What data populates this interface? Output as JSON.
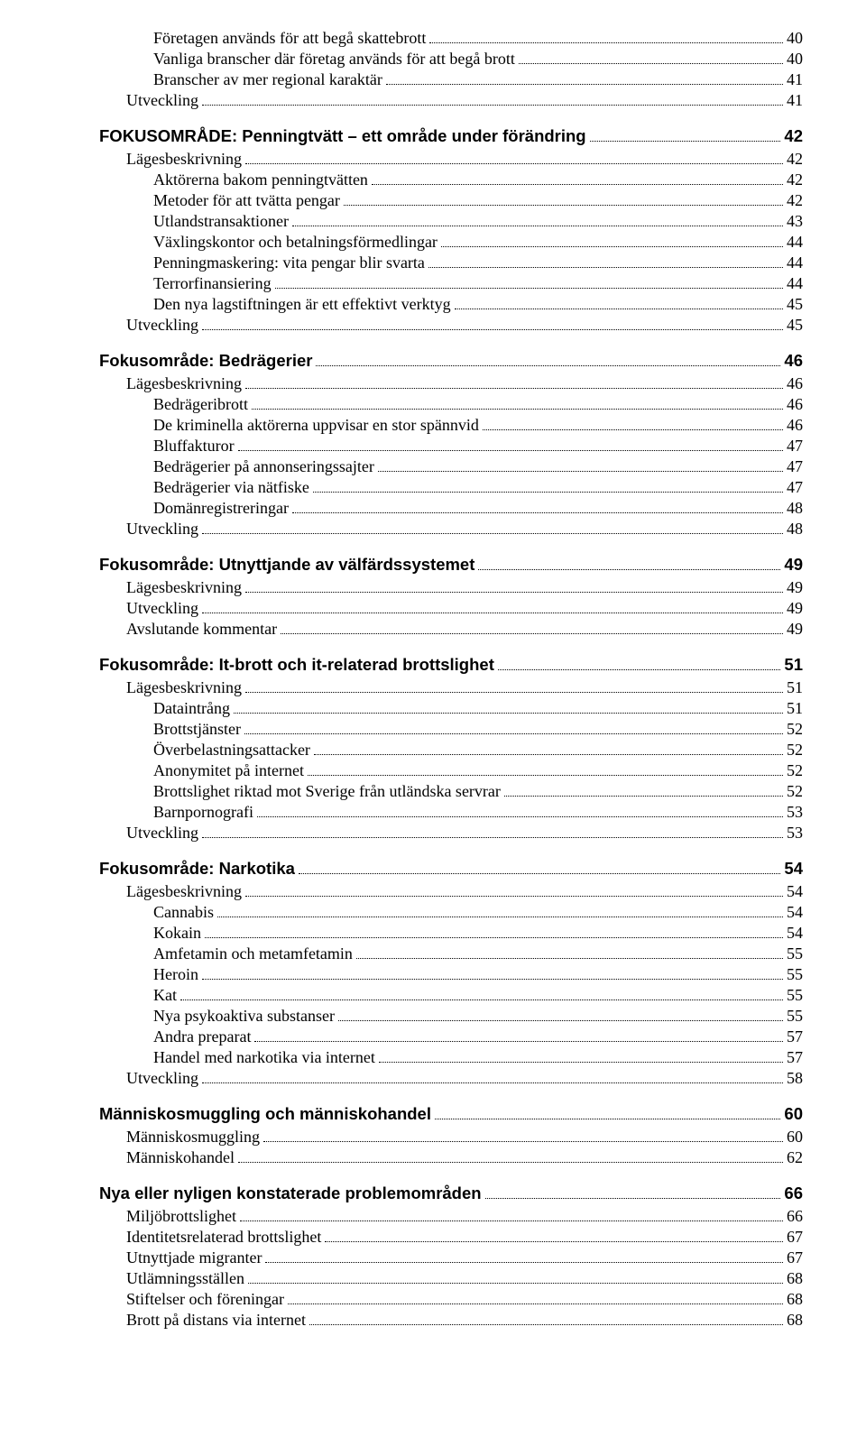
{
  "toc": [
    {
      "level": 3,
      "label": "Företagen används för att begå skattebrott",
      "page": "40"
    },
    {
      "level": 3,
      "label": "Vanliga branscher där företag används för att begå brott",
      "page": "40"
    },
    {
      "level": 3,
      "label": "Branscher av mer regional karaktär",
      "page": "41"
    },
    {
      "level": 2,
      "label": "Utveckling",
      "page": "41"
    },
    {
      "level": 1,
      "label": "FOKUSOMRÅDE: Penningtvätt – ett område under förändring",
      "page": "42"
    },
    {
      "level": 2,
      "label": "Lägesbeskrivning",
      "page": "42"
    },
    {
      "level": 3,
      "label": "Aktörerna bakom penningtvätten",
      "page": "42"
    },
    {
      "level": 3,
      "label": "Metoder för att tvätta pengar",
      "page": "42"
    },
    {
      "level": 3,
      "label": "Utlandstransaktioner",
      "page": "43"
    },
    {
      "level": 3,
      "label": "Växlingskontor och betalningsförmedlingar",
      "page": "44"
    },
    {
      "level": 3,
      "label": "Penningmaskering: vita pengar blir svarta",
      "page": "44"
    },
    {
      "level": 3,
      "label": "Terrorfinansiering",
      "page": "44"
    },
    {
      "level": 3,
      "label": "Den nya lagstiftningen är ett effektivt verktyg",
      "page": "45"
    },
    {
      "level": 2,
      "label": "Utveckling",
      "page": "45"
    },
    {
      "level": 1,
      "label": "Fokusområde: Bedrägerier",
      "page": "46"
    },
    {
      "level": 2,
      "label": "Lägesbeskrivning",
      "page": "46"
    },
    {
      "level": 3,
      "label": "Bedrägeribrott",
      "page": "46"
    },
    {
      "level": 3,
      "label": "De kriminella aktörerna uppvisar en stor spännvid",
      "page": "46"
    },
    {
      "level": 3,
      "label": "Bluffakturor",
      "page": "47"
    },
    {
      "level": 3,
      "label": "Bedrägerier på annonseringssajter",
      "page": "47"
    },
    {
      "level": 3,
      "label": "Bedrägerier via nätfiske",
      "page": "47"
    },
    {
      "level": 3,
      "label": "Domänregistreringar",
      "page": "48"
    },
    {
      "level": 2,
      "label": "Utveckling",
      "page": "48"
    },
    {
      "level": 1,
      "label": "Fokusområde: Utnyttjande av välfärdssystemet",
      "page": "49"
    },
    {
      "level": 2,
      "label": "Lägesbeskrivning",
      "page": "49"
    },
    {
      "level": 2,
      "label": "Utveckling",
      "page": "49"
    },
    {
      "level": 2,
      "label": "Avslutande kommentar",
      "page": "49"
    },
    {
      "level": 1,
      "label": "Fokusområde: It-brott och it-relaterad brottslighet",
      "page": "51"
    },
    {
      "level": 2,
      "label": "Lägesbeskrivning",
      "page": "51"
    },
    {
      "level": 3,
      "label": "Dataintrång",
      "page": "51"
    },
    {
      "level": 3,
      "label": "Brottstjänster",
      "page": "52"
    },
    {
      "level": 3,
      "label": "Överbelastningsattacker",
      "page": "52"
    },
    {
      "level": 3,
      "label": "Anonymitet på internet",
      "page": "52"
    },
    {
      "level": 3,
      "label": "Brottslighet riktad mot Sverige från utländska servrar",
      "page": "52"
    },
    {
      "level": 3,
      "label": "Barnpornografi",
      "page": "53"
    },
    {
      "level": 2,
      "label": "Utveckling",
      "page": "53"
    },
    {
      "level": 1,
      "label": "Fokusområde: Narkotika",
      "page": "54"
    },
    {
      "level": 2,
      "label": "Lägesbeskrivning",
      "page": "54"
    },
    {
      "level": 3,
      "label": "Cannabis",
      "page": "54"
    },
    {
      "level": 3,
      "label": "Kokain",
      "page": "54"
    },
    {
      "level": 3,
      "label": "Amfetamin och metamfetamin",
      "page": "55"
    },
    {
      "level": 3,
      "label": "Heroin",
      "page": "55"
    },
    {
      "level": 3,
      "label": "Kat",
      "page": "55"
    },
    {
      "level": 3,
      "label": "Nya psykoaktiva substanser",
      "page": "55"
    },
    {
      "level": 3,
      "label": "Andra preparat",
      "page": "57"
    },
    {
      "level": 3,
      "label": "Handel med narkotika via internet",
      "page": "57"
    },
    {
      "level": 2,
      "label": "Utveckling",
      "page": "58"
    },
    {
      "level": 1,
      "label": "Människosmuggling och människohandel",
      "page": "60"
    },
    {
      "level": 2,
      "label": "Människosmuggling",
      "page": "60"
    },
    {
      "level": 2,
      "label": "Människohandel",
      "page": "62"
    },
    {
      "level": 1,
      "label": "Nya eller nyligen konstaterade problemområden",
      "page": "66"
    },
    {
      "level": 2,
      "label": "Miljöbrottslighet",
      "page": "66"
    },
    {
      "level": 2,
      "label": "Identitetsrelaterad brottslighet",
      "page": "67"
    },
    {
      "level": 2,
      "label": "Utnyttjade migranter",
      "page": "67"
    },
    {
      "level": 2,
      "label": "Utlämningsställen",
      "page": "68"
    },
    {
      "level": 2,
      "label": "Stiftelser och föreningar",
      "page": "68"
    },
    {
      "level": 2,
      "label": "Brott på distans via internet",
      "page": "68"
    }
  ]
}
